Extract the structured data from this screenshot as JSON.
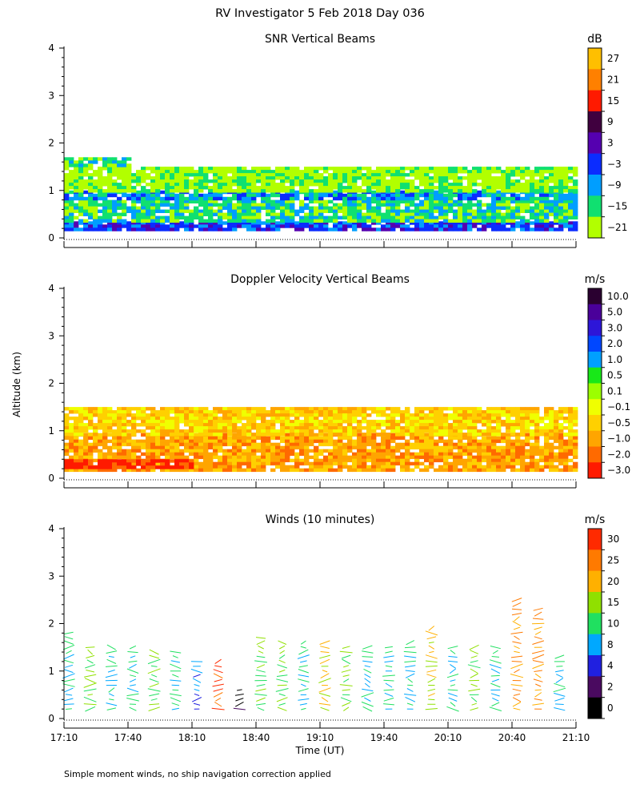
{
  "page": {
    "title": "RV Investigator    5 Feb 2018 Day 036",
    "ylabel": "Altitude (km)",
    "xlabel": "Time (UT)",
    "footnote": "Simple moment winds, no ship navigation correction applied"
  },
  "x_ticks": [
    "17:10",
    "17:40",
    "18:10",
    "18:40",
    "19:10",
    "19:40",
    "20:10",
    "20:40",
    "21:10"
  ],
  "y_ticks": [
    "0",
    "1",
    "2",
    "3",
    "4"
  ],
  "chart_data": [
    {
      "type": "heatmap",
      "title": "SNR Vertical Beams",
      "unit": "dB",
      "xlabel": "Time (UT)",
      "ylabel": "Altitude (km)",
      "x_range": [
        "17:10",
        "21:10"
      ],
      "ylim": [
        0,
        4
      ],
      "colorbar_labels": [
        "27",
        "21",
        "15",
        "9",
        "3",
        "−3",
        "−9",
        "−15",
        "−21"
      ],
      "colorbar_colors": [
        "#ffbf00",
        "#ff8000",
        "#ff1a00",
        "#40003f",
        "#5500b0",
        "#0b2cff",
        "#009eff",
        "#10e070",
        "#b2ff00"
      ],
      "layers": [
        {
          "from": "17:10",
          "to": "21:10",
          "alt_min": 0.2,
          "alt_max": 0.35,
          "dominant": "−3"
        },
        {
          "from": "17:10",
          "to": "21:10",
          "alt_min": 0.35,
          "alt_max": 0.8,
          "dominant": "−15"
        },
        {
          "from": "17:10",
          "to": "21:10",
          "alt_min": 0.8,
          "alt_max": 1.0,
          "dominant": "−9"
        },
        {
          "from": "17:10",
          "to": "21:10",
          "alt_min": 1.0,
          "alt_max": 1.5,
          "dominant": "−21"
        },
        {
          "from": "17:10",
          "to": "17:40",
          "alt_min": 1.5,
          "alt_max": 1.7,
          "dominant": "−15"
        }
      ]
    },
    {
      "type": "heatmap",
      "title": "Doppler Velocity Vertical Beams",
      "unit": "m/s",
      "xlabel": "Time (UT)",
      "ylabel": "Altitude (km)",
      "x_range": [
        "17:10",
        "21:10"
      ],
      "ylim": [
        0,
        4
      ],
      "colorbar_labels": [
        "10.0",
        "5.0",
        "3.0",
        "2.0",
        "1.0",
        "0.5",
        "0.1",
        "−0.1",
        "−0.5",
        "−1.0",
        "−2.0",
        "−3.0"
      ],
      "colorbar_colors": [
        "#2a0030",
        "#4a009a",
        "#2d16d8",
        "#0047ff",
        "#00a0ff",
        "#18e818",
        "#9cff00",
        "#f0ff00",
        "#ffd000",
        "#ffa500",
        "#ff6a00",
        "#ff1a00"
      ],
      "layers": [
        {
          "from": "17:10",
          "to": "21:10",
          "alt_min": 0.2,
          "alt_max": 0.95,
          "dominant": "−1.0"
        },
        {
          "from": "17:10",
          "to": "21:10",
          "alt_min": 0.95,
          "alt_max": 1.5,
          "dominant": "−0.5"
        },
        {
          "from": "17:10",
          "to": "18:10",
          "alt_min": 0.2,
          "alt_max": 0.4,
          "dominant": "−3.0"
        }
      ]
    },
    {
      "type": "scatter",
      "title": "Winds (10 minutes)",
      "unit": "m/s",
      "xlabel": "Time (UT)",
      "ylabel": "Altitude (km)",
      "x_range": [
        "17:10",
        "21:10"
      ],
      "ylim": [
        0,
        4
      ],
      "colorbar_labels": [
        "30",
        "25",
        "20",
        "15",
        "10",
        "8",
        "4",
        "2",
        "0"
      ],
      "colorbar_colors": [
        "#ff2a00",
        "#ff7a00",
        "#ffb000",
        "#90e000",
        "#20e060",
        "#00a8ff",
        "#2020e0",
        "#4a0a60",
        "#000000"
      ],
      "profile_times": [
        "17:10",
        "17:20",
        "17:30",
        "17:40",
        "17:50",
        "18:00",
        "18:10",
        "18:20",
        "18:30",
        "18:40",
        "18:50",
        "19:00",
        "19:10",
        "19:20",
        "19:30",
        "19:40",
        "19:50",
        "20:00",
        "20:10",
        "20:20",
        "20:30",
        "20:40",
        "20:50",
        "21:00"
      ],
      "profile_top_km": [
        1.9,
        1.6,
        1.6,
        1.6,
        1.5,
        1.5,
        1.2,
        1.2,
        0.6,
        1.8,
        1.7,
        1.7,
        1.7,
        1.6,
        1.6,
        1.6,
        1.7,
        2.0,
        1.6,
        1.6,
        1.6,
        2.6,
        2.4,
        1.4
      ],
      "profile_color": [
        "10",
        "15",
        "10",
        "10",
        "15",
        "10",
        "8",
        "30",
        "0",
        "15",
        "15",
        "10",
        "20",
        "15",
        "10",
        "10",
        "10",
        "20",
        "10",
        "15",
        "10",
        "25",
        "25",
        "10"
      ]
    }
  ]
}
